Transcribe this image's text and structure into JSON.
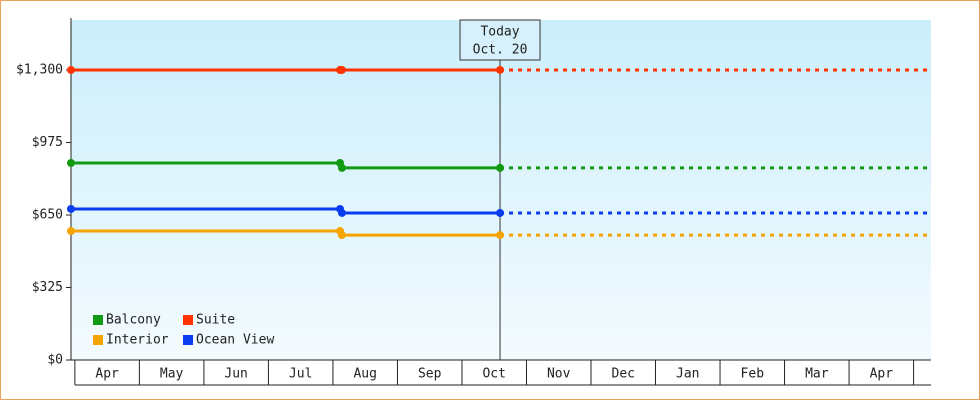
{
  "chart_data": {
    "type": "line",
    "annotation": [
      "Today",
      "Oct. 20"
    ],
    "xlim": [
      -0.06,
      13.27
    ],
    "xticks": [
      {
        "value": 0.5,
        "label": "Apr"
      },
      {
        "value": 1.5,
        "label": "May"
      },
      {
        "value": 2.5,
        "label": "Jun"
      },
      {
        "value": 3.5,
        "label": "Jul"
      },
      {
        "value": 4.5,
        "label": "Aug"
      },
      {
        "value": 5.5,
        "label": "Sep"
      },
      {
        "value": 6.5,
        "label": "Oct"
      },
      {
        "value": 7.5,
        "label": "Nov"
      },
      {
        "value": 8.5,
        "label": "Dec"
      },
      {
        "value": 9.5,
        "label": "Jan"
      },
      {
        "value": 10.5,
        "label": "Feb"
      },
      {
        "value": 11.5,
        "label": "Mar"
      },
      {
        "value": 12.5,
        "label": "Apr"
      }
    ],
    "ylim": [
      0,
      1524
    ],
    "yticks": [
      {
        "value": 0,
        "label": "$0"
      },
      {
        "value": 325,
        "label": "$325"
      },
      {
        "value": 650,
        "label": "$650"
      },
      {
        "value": 975,
        "label": "$975"
      },
      {
        "value": 1300,
        "label": "$1,300"
      }
    ],
    "x": [
      -0.06,
      4.11,
      4.14,
      6.59
    ],
    "series": [
      {
        "name": "Balcony",
        "color": "#129a12",
        "values": [
          883,
          883,
          861,
          861
        ]
      },
      {
        "name": "Suite",
        "color": "#ff3300",
        "values": [
          1300,
          1300,
          1300,
          1300
        ]
      },
      {
        "name": "Interior",
        "color": "#f5a300",
        "values": [
          578,
          578,
          560,
          560
        ]
      },
      {
        "name": "Ocean View",
        "color": "#0a3cf0",
        "values": [
          677,
          677,
          659,
          659
        ]
      }
    ]
  }
}
